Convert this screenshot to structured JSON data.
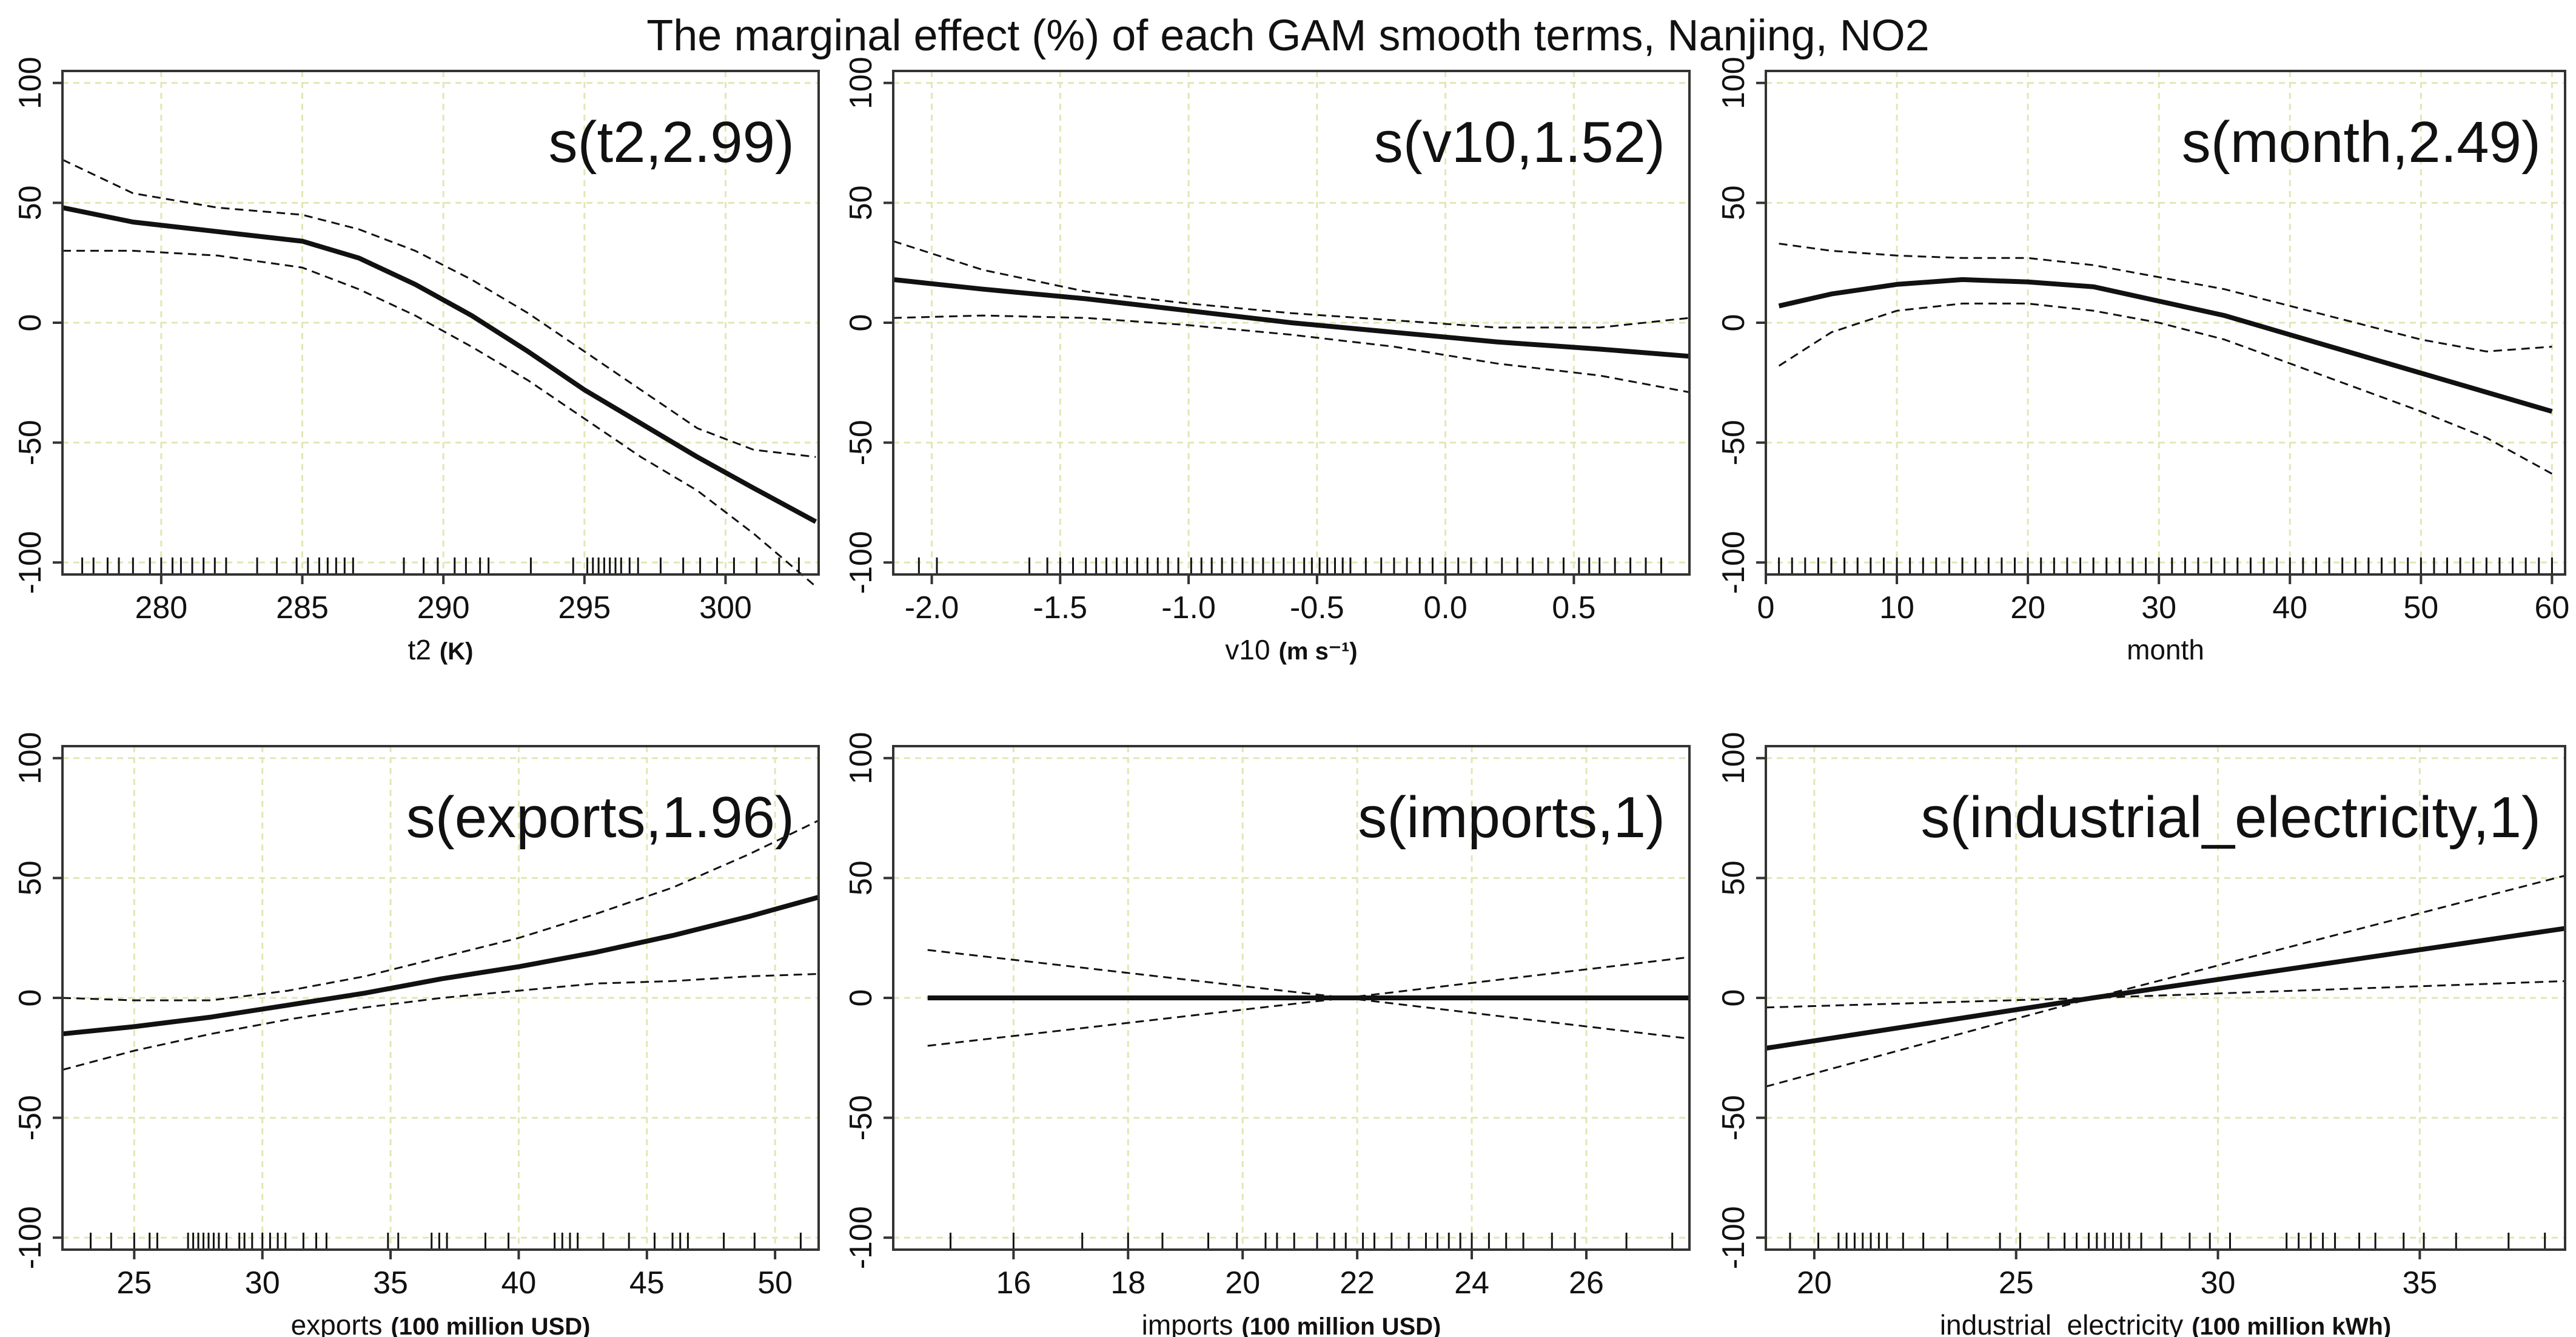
{
  "figure_title": "The marginal effect (%) of each GAM smooth terms, Nanjing, NO2",
  "colors": {
    "line": "#111111",
    "grid": "#e3e6b4",
    "frame": "#333333"
  },
  "chart_data": [
    {
      "type": "line",
      "label": "s(t2,2.99)",
      "xlabel_main": "t2",
      "xlabel_unit": "(K)",
      "xlim": [
        276.5,
        303.3
      ],
      "ylim": [
        -105,
        105
      ],
      "xticks": [
        280,
        285,
        290,
        295,
        300
      ],
      "xtick_labels": [
        "280",
        "285",
        "290",
        "295",
        "300"
      ],
      "yticks": [
        -100,
        -50,
        0,
        50,
        100
      ],
      "ytick_labels": [
        "-100",
        "-50",
        "0",
        "50",
        "100"
      ],
      "x": [
        276.5,
        279,
        282,
        285,
        287,
        289,
        291,
        293,
        295,
        297,
        299,
        301,
        303.2
      ],
      "fit": [
        48,
        42,
        38,
        34,
        27,
        16,
        3,
        -12,
        -28,
        -42,
        -56,
        -69,
        -83
      ],
      "upper": [
        68,
        54,
        48,
        45,
        39,
        30,
        18,
        4,
        -12,
        -28,
        -44,
        -53,
        -56
      ],
      "lower": [
        30,
        30,
        28,
        23,
        14,
        3,
        -10,
        -24,
        -40,
        -56,
        -70,
        -88,
        -110
      ],
      "rug": [
        277.2,
        277.6,
        278.1,
        278.5,
        279.0,
        279.6,
        280.0,
        280.4,
        280.7,
        281.1,
        281.5,
        281.9,
        282.3,
        283.4,
        284.1,
        284.8,
        285.2,
        285.6,
        285.9,
        286.2,
        286.5,
        286.8,
        288.6,
        289.3,
        289.8,
        290.4,
        290.8,
        291.3,
        291.6,
        293.1,
        294.6,
        295.1,
        295.3,
        295.5,
        295.7,
        295.9,
        296.1,
        296.3,
        296.6,
        296.9,
        297.7,
        298.5,
        299.1,
        299.7,
        300.3,
        301.1,
        301.9,
        302.6
      ]
    },
    {
      "type": "line",
      "label": "s(v10,1.52)",
      "xlabel_main": "v10",
      "xlabel_unit": "(m s⁻¹)",
      "xlim": [
        -2.15,
        0.95
      ],
      "ylim": [
        -105,
        105
      ],
      "xticks": [
        -2.0,
        -1.5,
        -1.0,
        -0.5,
        0.0,
        0.5
      ],
      "xtick_labels": [
        "-2.0",
        "-1.5",
        "-1.0",
        "-0.5",
        "0.0",
        "0.5"
      ],
      "yticks": [
        -100,
        -50,
        0,
        50,
        100
      ],
      "ytick_labels": [
        "-100",
        "-50",
        "0",
        "50",
        "100"
      ],
      "x": [
        -2.15,
        -1.8,
        -1.4,
        -1.0,
        -0.6,
        -0.2,
        0.2,
        0.6,
        0.95
      ],
      "fit": [
        18,
        14,
        10,
        5,
        0,
        -4,
        -8,
        -11,
        -14
      ],
      "upper": [
        34,
        22,
        13,
        8,
        4,
        1,
        -2,
        -2,
        2
      ],
      "lower": [
        2,
        3,
        2,
        -1,
        -5,
        -10,
        -17,
        -22,
        -29
      ],
      "rug": [
        -2.05,
        -1.98,
        -1.62,
        -1.55,
        -1.5,
        -1.45,
        -1.4,
        -1.36,
        -1.32,
        -1.28,
        -1.24,
        -1.2,
        -1.16,
        -1.12,
        -1.08,
        -1.04,
        -0.99,
        -0.95,
        -0.91,
        -0.87,
        -0.83,
        -0.79,
        -0.75,
        -0.71,
        -0.67,
        -0.63,
        -0.59,
        -0.55,
        -0.52,
        -0.49,
        -0.46,
        -0.43,
        -0.4,
        -0.37,
        -0.31,
        -0.25,
        -0.2,
        -0.15,
        -0.1,
        -0.05,
        0.0,
        0.05,
        0.1,
        0.16,
        0.22,
        0.28,
        0.34,
        0.4,
        0.46,
        0.52,
        0.56,
        0.6,
        0.66,
        0.72,
        0.78,
        0.84
      ]
    },
    {
      "type": "line",
      "label": "s(month,2.49)",
      "xlabel_main": "month",
      "xlabel_unit": "",
      "xlim": [
        0,
        61
      ],
      "ylim": [
        -105,
        105
      ],
      "xticks": [
        0,
        10,
        20,
        30,
        40,
        50,
        60
      ],
      "xtick_labels": [
        "0",
        "10",
        "20",
        "30",
        "40",
        "50",
        "60"
      ],
      "yticks": [
        -100,
        -50,
        0,
        50,
        100
      ],
      "ytick_labels": [
        "-100",
        "-50",
        "0",
        "50",
        "100"
      ],
      "x": [
        1,
        5,
        10,
        15,
        20,
        25,
        30,
        35,
        40,
        45,
        50,
        55,
        60
      ],
      "fit": [
        7,
        12,
        16,
        18,
        17,
        15,
        9,
        3,
        -5,
        -13,
        -21,
        -29,
        -37
      ],
      "upper": [
        33,
        30,
        28,
        27,
        27,
        24,
        19,
        14,
        7,
        0,
        -7,
        -12,
        -10
      ],
      "lower": [
        -18,
        -4,
        5,
        8,
        8,
        5,
        0,
        -7,
        -17,
        -27,
        -37,
        -48,
        -63
      ],
      "rug": [
        1,
        2,
        3,
        4,
        5,
        6,
        7,
        8,
        9,
        10,
        11,
        12,
        13,
        14,
        15,
        16,
        17,
        18,
        19,
        20,
        21,
        22,
        23,
        24,
        25,
        26,
        27,
        28,
        29,
        30,
        31,
        32,
        33,
        34,
        35,
        36,
        37,
        38,
        39,
        40,
        41,
        42,
        43,
        44,
        45,
        46,
        47,
        48,
        49,
        50,
        51,
        52,
        53,
        54,
        55,
        56,
        57,
        58,
        59,
        60
      ]
    },
    {
      "type": "line",
      "label": "s(exports,1.96)",
      "xlabel_main": "exports",
      "xlabel_unit": "(100 million USD)",
      "xlim": [
        22.2,
        51.7
      ],
      "ylim": [
        -105,
        105
      ],
      "xticks": [
        25,
        30,
        35,
        40,
        45,
        50
      ],
      "xtick_labels": [
        "25",
        "30",
        "35",
        "40",
        "45",
        "50"
      ],
      "yticks": [
        -100,
        -50,
        0,
        50,
        100
      ],
      "ytick_labels": [
        "-100",
        "-50",
        "0",
        "50",
        "100"
      ],
      "x": [
        22.2,
        25,
        28,
        31,
        34,
        37,
        40,
        43,
        46,
        49,
        51.7
      ],
      "fit": [
        -15,
        -12,
        -8,
        -3,
        2,
        8,
        13,
        19,
        26,
        34,
        42
      ],
      "upper": [
        0,
        -1,
        -1,
        3,
        9,
        17,
        25,
        35,
        46,
        60,
        74
      ],
      "lower": [
        -30,
        -22,
        -15,
        -9,
        -4,
        0,
        3,
        6,
        7,
        9,
        10
      ],
      "rug": [
        23.3,
        24.1,
        25.0,
        25.6,
        25.9,
        27.1,
        27.3,
        27.5,
        27.7,
        27.9,
        28.1,
        28.3,
        28.6,
        29.1,
        29.3,
        29.6,
        30.0,
        30.3,
        30.6,
        30.9,
        31.6,
        32.1,
        32.5,
        34.9,
        35.3,
        36.6,
        36.9,
        37.2,
        38.7,
        39.6,
        41.4,
        41.7,
        42.0,
        42.3,
        43.3,
        44.3,
        45.3,
        46.0,
        46.3,
        46.6,
        48.0,
        49.2,
        51.0
      ]
    },
    {
      "type": "line",
      "label": "s(imports,1)",
      "xlabel_main": "imports",
      "xlabel_unit": "(100 million USD)",
      "xlim": [
        13.9,
        27.8
      ],
      "ylim": [
        -105,
        105
      ],
      "xticks": [
        16,
        18,
        20,
        22,
        24,
        26
      ],
      "xtick_labels": [
        "16",
        "18",
        "20",
        "22",
        "24",
        "26"
      ],
      "yticks": [
        -100,
        -50,
        0,
        50,
        100
      ],
      "ytick_labels": [
        "-100",
        "-50",
        "0",
        "50",
        "100"
      ],
      "x": [
        14.5,
        21.8,
        27.8
      ],
      "fit": [
        0,
        0,
        0
      ],
      "upper": [
        20,
        0,
        17
      ],
      "lower": [
        -20,
        0,
        -17
      ],
      "rug": [
        14.9,
        16.0,
        17.2,
        18.0,
        18.6,
        19.4,
        19.9,
        20.4,
        20.6,
        20.9,
        21.3,
        21.6,
        21.8,
        22.1,
        22.3,
        22.6,
        22.9,
        23.2,
        23.4,
        23.6,
        23.8,
        24.0,
        24.3,
        24.6,
        24.9,
        25.4,
        25.8,
        26.7,
        27.5
      ]
    },
    {
      "type": "line",
      "label": "s(industrial_electricity,1)",
      "xlabel_main": "industrial_electricity",
      "xlabel_unit": "(100 million kWh)",
      "xlim": [
        18.8,
        38.6
      ],
      "ylim": [
        -105,
        105
      ],
      "xticks": [
        20,
        25,
        30,
        35
      ],
      "xtick_labels": [
        "20",
        "25",
        "30",
        "35"
      ],
      "yticks": [
        -100,
        -50,
        0,
        50,
        100
      ],
      "ytick_labels": [
        "-100",
        "-50",
        "0",
        "50",
        "100"
      ],
      "x": [
        18.8,
        26.9,
        38.6
      ],
      "fit": [
        -21,
        0,
        29
      ],
      "upper": [
        -4,
        0,
        51
      ],
      "lower": [
        -37,
        0,
        7
      ],
      "rug": [
        19.4,
        20.1,
        20.6,
        20.8,
        21.0,
        21.2,
        21.4,
        21.6,
        21.8,
        22.2,
        22.7,
        23.3,
        24.6,
        25.1,
        25.8,
        26.2,
        26.5,
        26.8,
        27.0,
        27.2,
        27.4,
        27.6,
        27.8,
        28.1,
        28.6,
        29.3,
        29.8,
        30.3,
        31.7,
        32.0,
        32.3,
        32.6,
        32.9,
        33.5,
        33.9,
        34.6,
        35.1,
        35.9,
        37.2,
        38.1
      ]
    }
  ]
}
